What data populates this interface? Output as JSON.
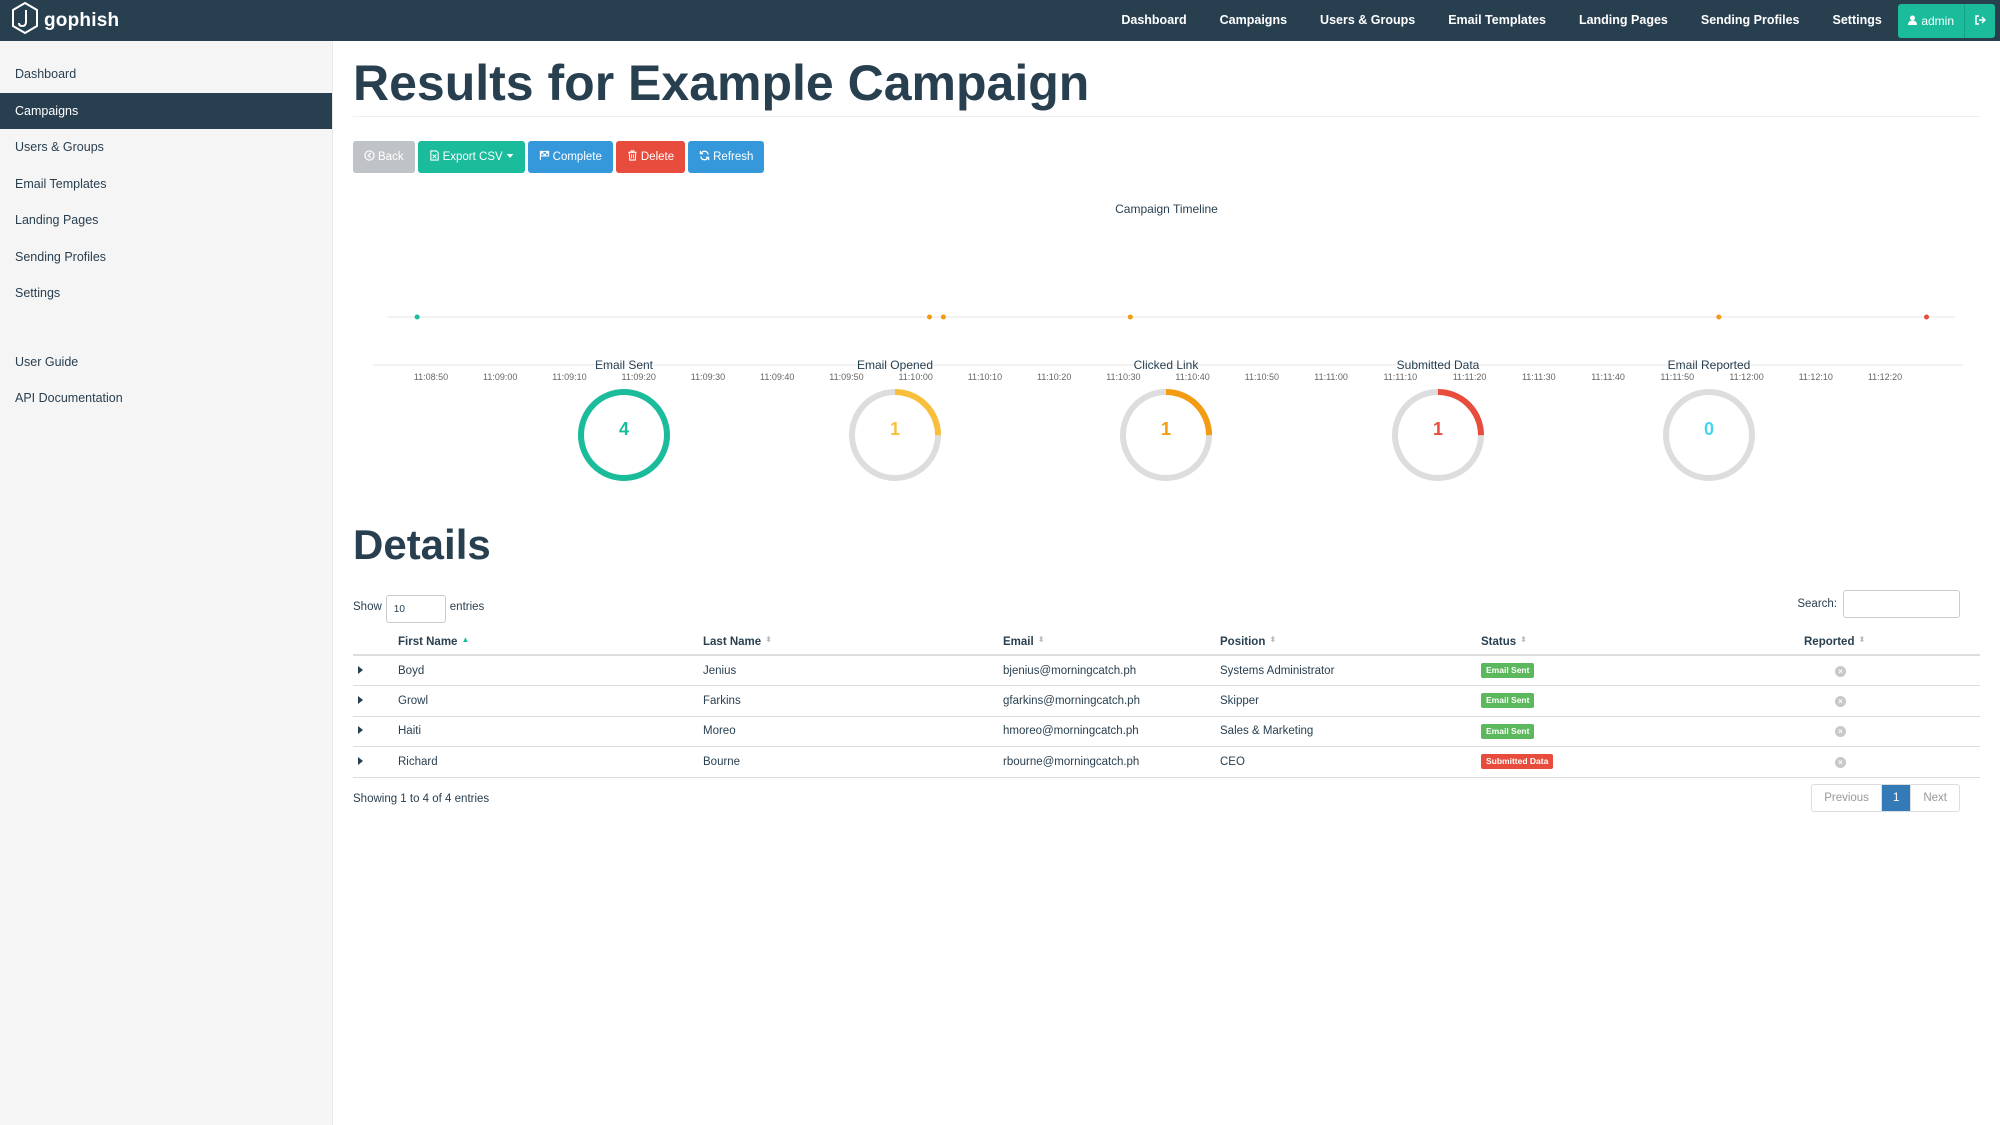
{
  "brand": {
    "name": "gophish"
  },
  "nav": {
    "items": [
      "Dashboard",
      "Campaigns",
      "Users & Groups",
      "Email Templates",
      "Landing Pages",
      "Sending Profiles",
      "Settings"
    ],
    "user": "admin"
  },
  "sidebar": {
    "items": [
      "Dashboard",
      "Campaigns",
      "Users & Groups",
      "Email Templates",
      "Landing Pages",
      "Sending Profiles",
      "Settings"
    ],
    "active": "Campaigns",
    "secondary": [
      "User Guide",
      "API Documentation"
    ]
  },
  "page": {
    "title": "Results for Example Campaign"
  },
  "buttons": {
    "back": "Back",
    "export": "Export CSV",
    "complete": "Complete",
    "delete": "Delete",
    "refresh": "Refresh"
  },
  "timeline": {
    "title": "Campaign Timeline",
    "ticks": [
      "11:08:50",
      "11:09:00",
      "11:09:10",
      "11:09:20",
      "11:09:30",
      "11:09:40",
      "11:09:50",
      "11:10:00",
      "11:10:10",
      "11:10:20",
      "11:10:30",
      "11:10:40",
      "11:10:50",
      "11:11:00",
      "11:11:10",
      "11:11:20",
      "11:11:30",
      "11:11:40",
      "11:11:50",
      "11:12:00",
      "11:12:10",
      "11:12:20"
    ],
    "events": [
      {
        "time": "11:08:48",
        "color": "#1abc9c"
      },
      {
        "time": "11:10:02",
        "color": "#f39c12"
      },
      {
        "time": "11:10:04",
        "color": "#f39c12"
      },
      {
        "time": "11:10:31",
        "color": "#f39c12"
      },
      {
        "time": "11:11:56",
        "color": "#f39c12"
      },
      {
        "time": "11:12:26",
        "color": "#e74c3c"
      }
    ]
  },
  "stats": [
    {
      "label": "Email Sent",
      "value": "4",
      "fraction": 1.0,
      "color": "#1abc9c"
    },
    {
      "label": "Email Opened",
      "value": "1",
      "fraction": 0.25,
      "color": "#f9bf3b"
    },
    {
      "label": "Clicked Link",
      "value": "1",
      "fraction": 0.25,
      "color": "#f39c12"
    },
    {
      "label": "Submitted Data",
      "value": "1",
      "fraction": 0.25,
      "color": "#e74c3c"
    },
    {
      "label": "Email Reported",
      "value": "0",
      "fraction": 0.0,
      "color": "#45d6ef"
    }
  ],
  "details": {
    "title": "Details",
    "show_label": "Show",
    "show_value": "10",
    "entries_label": "entries",
    "search_label": "Search:",
    "columns": [
      "First Name",
      "Last Name",
      "Email",
      "Position",
      "Status",
      "Reported"
    ],
    "rows": [
      {
        "first": "Boyd",
        "last": "Jenius",
        "email": "bjenius@morningcatch.ph",
        "position": "Systems Administrator",
        "status": "Email Sent"
      },
      {
        "first": "Growl",
        "last": "Farkins",
        "email": "gfarkins@morningcatch.ph",
        "position": "Skipper",
        "status": "Email Sent"
      },
      {
        "first": "Haiti",
        "last": "Moreo",
        "email": "hmoreo@morningcatch.ph",
        "position": "Sales & Marketing",
        "status": "Email Sent"
      },
      {
        "first": "Richard",
        "last": "Bourne",
        "email": "rbourne@morningcatch.ph",
        "position": "CEO",
        "status": "Submitted Data"
      }
    ],
    "showing": "Showing 1 to 4 of 4 entries",
    "pager": {
      "prev": "Previous",
      "current": "1",
      "next": "Next"
    }
  }
}
